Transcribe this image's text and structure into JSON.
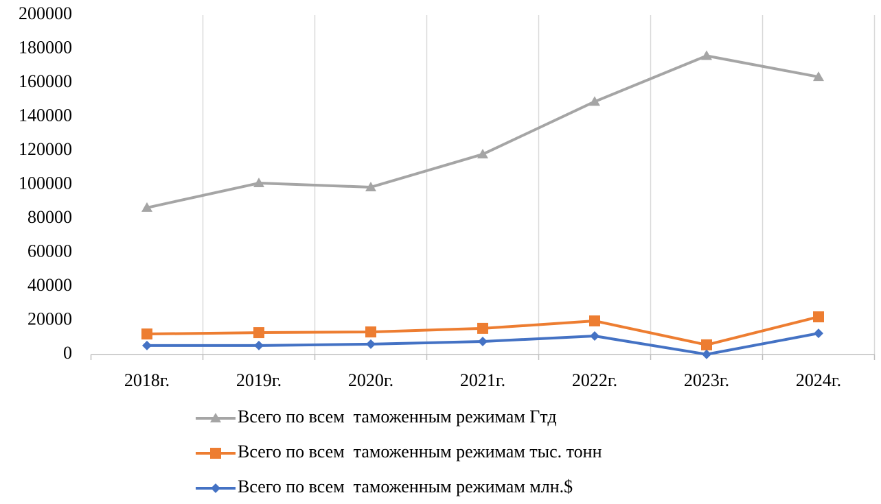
{
  "chart_data": {
    "type": "line",
    "categories": [
      "2018г.",
      "2019г.",
      "2020г.",
      "2021г.",
      "2022г.",
      "2023г.",
      "2024г."
    ],
    "series": [
      {
        "name": "Всего по всем  таможенным режимам Гтд",
        "color": "#a5a5a5",
        "marker": "triangle",
        "values": [
          86500,
          101000,
          98600,
          118000,
          149000,
          176000,
          163600
        ]
      },
      {
        "name": "Всего по всем  таможенным режимам тыс. тонн",
        "color": "#ed7d31",
        "marker": "square",
        "values": [
          12100,
          12900,
          13300,
          15400,
          19800,
          5700,
          22200
        ]
      },
      {
        "name": "Всего по всем  таможенным режимам млн.$",
        "color": "#4472c4",
        "marker": "diamond",
        "values": [
          5300,
          5300,
          6100,
          7700,
          10900,
          100,
          12500
        ]
      }
    ],
    "ylim": [
      0,
      200000
    ],
    "yticks": [
      0,
      20000,
      40000,
      60000,
      80000,
      100000,
      120000,
      140000,
      160000,
      180000,
      200000
    ],
    "grid": "x",
    "legend": "bottom"
  }
}
